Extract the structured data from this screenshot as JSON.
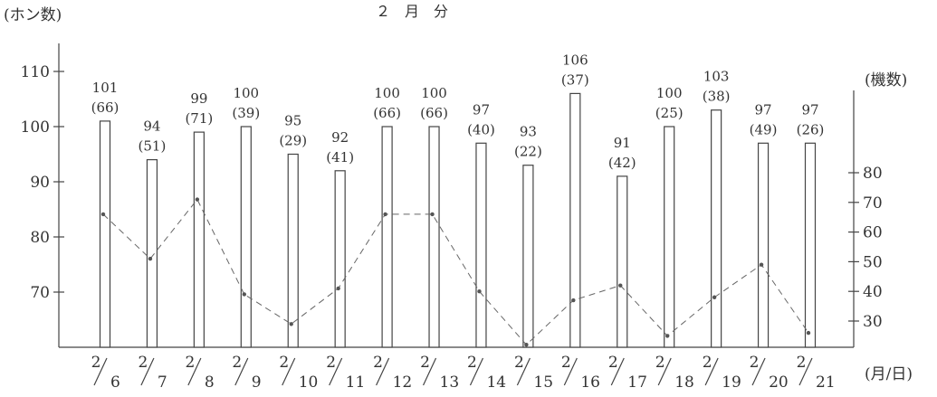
{
  "chart_data": {
    "type": "bar",
    "title": "２　月　分",
    "left_unit": "(ホン数)",
    "right_unit": "(機数)",
    "x_unit": "(月/日)",
    "categories": [
      "2/6",
      "2/7",
      "2/8",
      "2/9",
      "2/10",
      "2/11",
      "2/12",
      "2/13",
      "2/14",
      "2/15",
      "2/16",
      "2/17",
      "2/18",
      "2/19",
      "2/20",
      "2/21"
    ],
    "date_parts": [
      {
        "m": "2",
        "d": "6"
      },
      {
        "m": "2",
        "d": "7"
      },
      {
        "m": "2",
        "d": "8"
      },
      {
        "m": "2",
        "d": "9"
      },
      {
        "m": "2",
        "d": "10"
      },
      {
        "m": "2",
        "d": "11"
      },
      {
        "m": "2",
        "d": "12"
      },
      {
        "m": "2",
        "d": "13"
      },
      {
        "m": "2",
        "d": "14"
      },
      {
        "m": "2",
        "d": "15"
      },
      {
        "m": "2",
        "d": "16"
      },
      {
        "m": "2",
        "d": "17"
      },
      {
        "m": "2",
        "d": "18"
      },
      {
        "m": "2",
        "d": "19"
      },
      {
        "m": "2",
        "d": "20"
      },
      {
        "m": "2",
        "d": "21"
      }
    ],
    "series": [
      {
        "axis": "left",
        "kind": "bar",
        "values": [
          101,
          94,
          99,
          100,
          95,
          92,
          100,
          100,
          97,
          93,
          106,
          91,
          100,
          103,
          97,
          97
        ]
      },
      {
        "axis": "right",
        "kind": "line",
        "values": [
          66,
          51,
          71,
          39,
          29,
          41,
          66,
          66,
          40,
          22,
          37,
          42,
          25,
          38,
          49,
          26
        ]
      }
    ],
    "bar_labels": [
      "101",
      "94",
      "99",
      "100",
      "95",
      "92",
      "100",
      "100",
      "97",
      "93",
      "106",
      "91",
      "100",
      "103",
      "97",
      "97"
    ],
    "line_labels": [
      "(66)",
      "(51)",
      "(71)",
      "(39)",
      "(29)",
      "(41)",
      "(66)",
      "(66)",
      "(40)",
      "(22)",
      "(37)",
      "(42)",
      "(25)",
      "(38)",
      "(49)",
      "(26)"
    ],
    "left_axis": {
      "ylim": [
        60,
        113
      ],
      "ticks": [
        70,
        80,
        90,
        100,
        110
      ]
    },
    "right_axis": {
      "ylim": [
        20,
        83
      ],
      "ticks": [
        30,
        40,
        50,
        60,
        70,
        80
      ]
    },
    "grid": false
  }
}
